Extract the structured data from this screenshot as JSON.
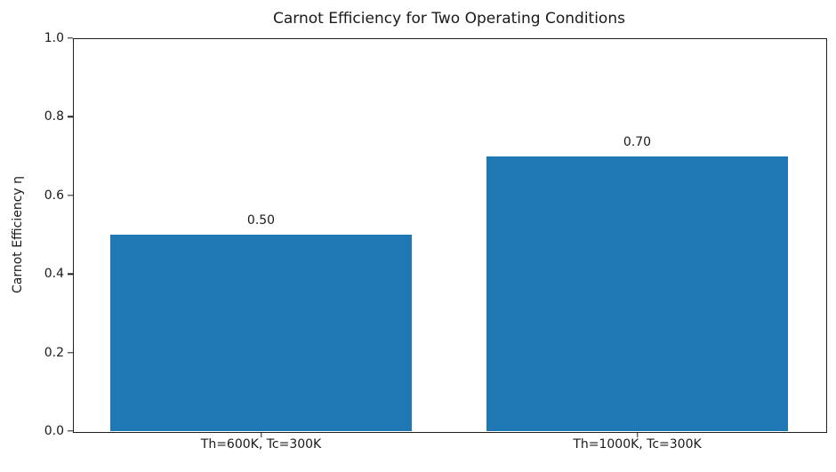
{
  "chart_data": {
    "type": "bar",
    "title": "Carnot Efficiency for Two Operating Conditions",
    "xlabel": "",
    "ylabel": "Carnot Efficiency η",
    "categories": [
      "Th=600K, Tc=300K",
      "Th=1000K, Tc=300K"
    ],
    "values": [
      0.5,
      0.7
    ],
    "bar_labels": [
      "0.50",
      "0.70"
    ],
    "ylim": [
      0.0,
      1.0
    ],
    "yticks": [
      "0.0",
      "0.2",
      "0.4",
      "0.6",
      "0.8",
      "1.0"
    ],
    "bar_color": "#1f77b4",
    "bar_width_fraction": 0.8,
    "grid": false,
    "legend_position": "none"
  }
}
